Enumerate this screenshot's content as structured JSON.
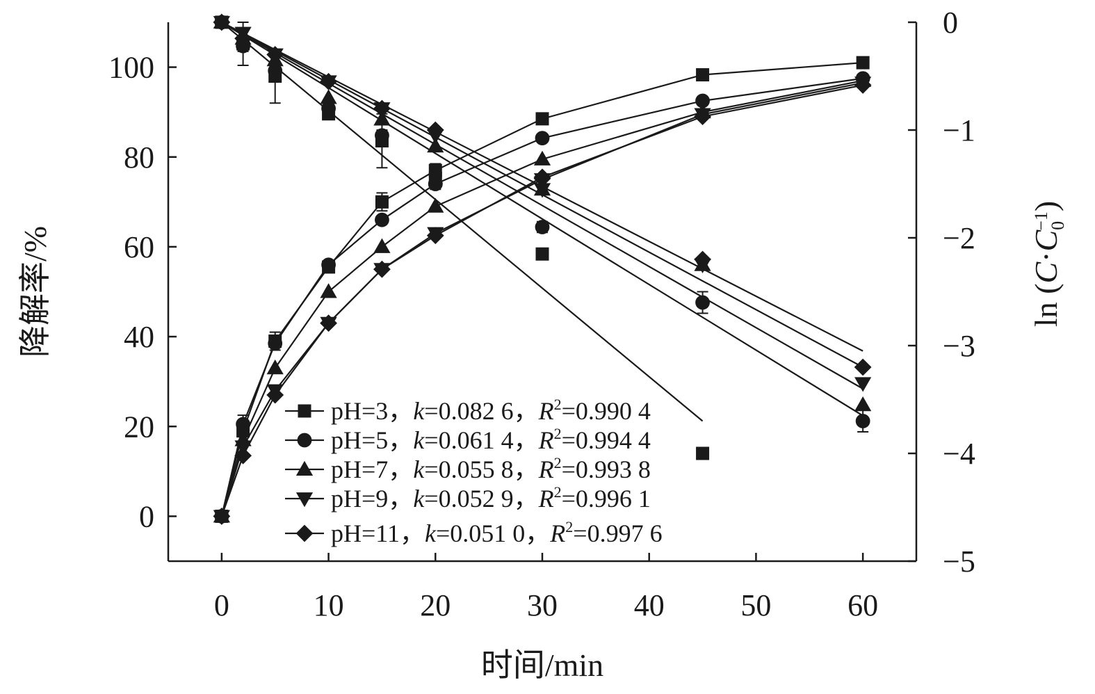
{
  "chart_data": {
    "type": "line",
    "xlabel": "时间/min",
    "ylabel_left": "降解率/%",
    "ylabel_right": {
      "prefix": "ln (",
      "C": "C",
      "dot": "·",
      "C0": "C",
      "sub": "0",
      "sup": "−1",
      "suffix": ")"
    },
    "x_ticks": [
      "0",
      "10",
      "20",
      "30",
      "40",
      "50",
      "60"
    ],
    "xlim": [
      -5,
      65
    ],
    "y_left_ticks": [
      "0",
      "20",
      "40",
      "60",
      "80",
      "100"
    ],
    "ylim_left": [
      -10,
      110
    ],
    "y_right_ticks": [
      "0",
      "−1",
      "−2",
      "−3",
      "−4",
      "−5"
    ],
    "ylim_right": [
      -5,
      0
    ],
    "x": [
      0,
      2,
      5,
      10,
      15,
      20,
      30,
      45,
      60
    ],
    "degradation_series": [
      {
        "key": "pH3",
        "values": [
          0,
          19,
          39,
          55.5,
          70,
          77,
          88.5,
          98.3,
          101
        ]
      },
      {
        "key": "pH5",
        "values": [
          0,
          20.5,
          38.5,
          56,
          66,
          74,
          84.2,
          92.5,
          97.5
        ]
      },
      {
        "key": "pH7",
        "values": [
          0,
          17,
          33,
          50,
          60,
          69,
          79.5,
          90,
          97
        ]
      },
      {
        "key": "pH9",
        "values": [
          0,
          15.5,
          28,
          43,
          55,
          63,
          75,
          89.5,
          96.5
        ]
      },
      {
        "key": "pH11",
        "values": [
          0,
          13.5,
          27,
          43,
          55,
          62.5,
          75.5,
          89,
          96
        ]
      }
    ],
    "kinetics_series": [
      {
        "key": "pH3",
        "k": 0.0826,
        "values": [
          0,
          -0.2,
          -0.5,
          -0.85,
          -1.1,
          -1.45,
          -2.15,
          -4.0
        ],
        "errors": [
          0,
          0.2,
          0.25,
          0.05,
          0.25,
          0.05,
          0.05,
          0.05
        ]
      },
      {
        "key": "pH5",
        "k": 0.0614,
        "values": [
          0,
          -0.22,
          -0.45,
          -0.8,
          -1.05,
          -1.5,
          -1.9,
          -2.6,
          -3.7
        ],
        "errors": [
          0,
          0.05,
          0.05,
          0.05,
          0.05,
          0.05,
          0.05,
          0.1,
          0.1
        ]
      },
      {
        "key": "pH7",
        "k": 0.0558,
        "values": [
          0,
          -0.15,
          -0.35,
          -0.7,
          -0.9,
          -1.15,
          -1.55,
          -2.25,
          -3.55
        ]
      },
      {
        "key": "pH9",
        "k": 0.0529,
        "values": [
          0,
          -0.1,
          -0.3,
          -0.55,
          -0.8,
          -1.05,
          -1.55,
          -2.25,
          -3.35
        ]
      },
      {
        "key": "pH11",
        "k": 0.051,
        "values": [
          0,
          -0.15,
          -0.3,
          -0.55,
          -0.8,
          -1.0,
          -1.45,
          -2.2,
          -3.2
        ]
      }
    ],
    "fit_lines": [
      {
        "key": "pH3",
        "x_end": 45,
        "y_end": -3.7
      },
      {
        "key": "pH5",
        "x_end": 60,
        "y_end": -3.65
      },
      {
        "key": "pH7",
        "x_end": 60,
        "y_end": -3.4
      },
      {
        "key": "pH9",
        "x_end": 60,
        "y_end": -3.2
      },
      {
        "key": "pH11",
        "x_end": 60,
        "y_end": -3.05
      }
    ],
    "degradation_errors": [
      0,
      3.5,
      2,
      1,
      2,
      1.5,
      1,
      1,
      1
    ],
    "legend": [
      {
        "marker": "square",
        "pH": "pH=3，",
        "k_label": "k",
        "k": "=0.082 6，",
        "r_label": "R",
        "r_sup": "2",
        "r2": "=0.990 4"
      },
      {
        "marker": "circle",
        "pH": "pH=5，",
        "k_label": "k",
        "k": "=0.061 4，",
        "r_label": "R",
        "r_sup": "2",
        "r2": "=0.994 4"
      },
      {
        "marker": "triangle-up",
        "pH": "pH=7，",
        "k_label": "k",
        "k": "=0.055 8，",
        "r_label": "R",
        "r_sup": "2",
        "r2": "=0.993 8"
      },
      {
        "marker": "triangle-down",
        "pH": "pH=9，",
        "k_label": "k",
        "k": "=0.052 9，",
        "r_label": "R",
        "r_sup": "2",
        "r2": "=0.996 1"
      },
      {
        "marker": "diamond",
        "pH": "pH=11，",
        "k_label": "k",
        "k": "=0.051 0，",
        "r_label": "R",
        "r_sup": "2",
        "r2": "=0.997 6"
      }
    ],
    "legend_placement": "lower-center",
    "grid": false,
    "colors": {
      "ink": "#1a1a1a"
    }
  }
}
